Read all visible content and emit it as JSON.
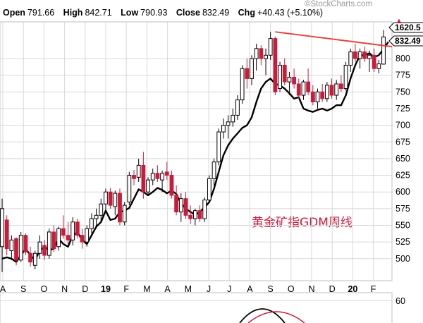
{
  "header": {
    "open_label": "Open",
    "open_value": "791.66",
    "high_label": "High",
    "high_value": "842.71",
    "low_label": "Low",
    "low_value": "790.93",
    "close_label": "Close",
    "close_value": "832.49",
    "chg_label": "Chg",
    "chg_value": "+40.43 (+5.10%)",
    "chg_arrow": "▲"
  },
  "watermark": "©StockCharts.com",
  "annotation": "黄金矿指GDM周线",
  "price_tags": {
    "upper": "1620.5",
    "current": "832.49"
  },
  "colors": {
    "up": "#000000",
    "down": "#cc1a3a",
    "line": "#000000",
    "trendline": "#e8413a",
    "grid": "#d8d8d8",
    "accent": "#cc1a3a"
  },
  "chart_data": {
    "type": "candlestick",
    "interval": "weekly",
    "y_ticks": [
      500,
      525,
      550,
      575,
      600,
      625,
      650,
      675,
      700,
      725,
      750,
      775,
      800
    ],
    "y_range": [
      467,
      855
    ],
    "x_tick_labels": [
      "A",
      "S",
      "O",
      "N",
      "D",
      "19",
      "F",
      "M",
      "A",
      "M",
      "J",
      "J",
      "A",
      "S",
      "O",
      "N",
      "D",
      "20",
      "F"
    ],
    "candles": [
      {
        "o": 518,
        "h": 590,
        "l": 480,
        "c": 575
      },
      {
        "o": 558,
        "h": 565,
        "l": 505,
        "c": 515
      },
      {
        "o": 512,
        "h": 535,
        "l": 498,
        "c": 528
      },
      {
        "o": 530,
        "h": 532,
        "l": 490,
        "c": 498
      },
      {
        "o": 498,
        "h": 540,
        "l": 495,
        "c": 535
      },
      {
        "o": 535,
        "h": 538,
        "l": 505,
        "c": 510
      },
      {
        "o": 508,
        "h": 518,
        "l": 488,
        "c": 495
      },
      {
        "o": 490,
        "h": 512,
        "l": 484,
        "c": 508
      },
      {
        "o": 508,
        "h": 535,
        "l": 500,
        "c": 525
      },
      {
        "o": 520,
        "h": 528,
        "l": 498,
        "c": 505
      },
      {
        "o": 505,
        "h": 545,
        "l": 500,
        "c": 540
      },
      {
        "o": 540,
        "h": 550,
        "l": 510,
        "c": 515
      },
      {
        "o": 518,
        "h": 548,
        "l": 512,
        "c": 545
      },
      {
        "o": 545,
        "h": 565,
        "l": 530,
        "c": 535
      },
      {
        "o": 535,
        "h": 555,
        "l": 522,
        "c": 528
      },
      {
        "o": 528,
        "h": 562,
        "l": 520,
        "c": 555
      },
      {
        "o": 555,
        "h": 560,
        "l": 530,
        "c": 535
      },
      {
        "o": 535,
        "h": 545,
        "l": 515,
        "c": 525
      },
      {
        "o": 525,
        "h": 550,
        "l": 518,
        "c": 545
      },
      {
        "o": 545,
        "h": 568,
        "l": 538,
        "c": 560
      },
      {
        "o": 560,
        "h": 575,
        "l": 545,
        "c": 565
      },
      {
        "o": 565,
        "h": 590,
        "l": 555,
        "c": 582
      },
      {
        "o": 582,
        "h": 605,
        "l": 570,
        "c": 600
      },
      {
        "o": 600,
        "h": 606,
        "l": 575,
        "c": 580
      },
      {
        "o": 578,
        "h": 602,
        "l": 565,
        "c": 598
      },
      {
        "o": 598,
        "h": 605,
        "l": 550,
        "c": 555
      },
      {
        "o": 555,
        "h": 585,
        "l": 550,
        "c": 580
      },
      {
        "o": 585,
        "h": 630,
        "l": 580,
        "c": 625
      },
      {
        "o": 625,
        "h": 633,
        "l": 610,
        "c": 620
      },
      {
        "o": 622,
        "h": 650,
        "l": 615,
        "c": 640
      },
      {
        "o": 640,
        "h": 660,
        "l": 590,
        "c": 600
      },
      {
        "o": 600,
        "h": 622,
        "l": 595,
        "c": 618
      },
      {
        "o": 618,
        "h": 635,
        "l": 610,
        "c": 628
      },
      {
        "o": 628,
        "h": 640,
        "l": 615,
        "c": 620
      },
      {
        "o": 618,
        "h": 632,
        "l": 600,
        "c": 628
      },
      {
        "o": 630,
        "h": 645,
        "l": 618,
        "c": 625
      },
      {
        "o": 625,
        "h": 632,
        "l": 590,
        "c": 595
      },
      {
        "o": 595,
        "h": 610,
        "l": 565,
        "c": 570
      },
      {
        "o": 570,
        "h": 598,
        "l": 555,
        "c": 590
      },
      {
        "o": 590,
        "h": 600,
        "l": 560,
        "c": 565
      },
      {
        "o": 565,
        "h": 580,
        "l": 552,
        "c": 560
      },
      {
        "o": 560,
        "h": 575,
        "l": 550,
        "c": 572
      },
      {
        "o": 572,
        "h": 580,
        "l": 555,
        "c": 560
      },
      {
        "o": 560,
        "h": 592,
        "l": 555,
        "c": 588
      },
      {
        "o": 588,
        "h": 625,
        "l": 585,
        "c": 620
      },
      {
        "o": 620,
        "h": 650,
        "l": 610,
        "c": 645
      },
      {
        "o": 645,
        "h": 695,
        "l": 640,
        "c": 690
      },
      {
        "o": 690,
        "h": 710,
        "l": 680,
        "c": 700
      },
      {
        "o": 700,
        "h": 715,
        "l": 680,
        "c": 705
      },
      {
        "o": 705,
        "h": 725,
        "l": 698,
        "c": 715
      },
      {
        "o": 715,
        "h": 745,
        "l": 708,
        "c": 738
      },
      {
        "o": 738,
        "h": 790,
        "l": 732,
        "c": 785
      },
      {
        "o": 785,
        "h": 800,
        "l": 755,
        "c": 770
      },
      {
        "o": 770,
        "h": 805,
        "l": 760,
        "c": 800
      },
      {
        "o": 800,
        "h": 822,
        "l": 782,
        "c": 815
      },
      {
        "o": 815,
        "h": 820,
        "l": 790,
        "c": 800
      },
      {
        "o": 800,
        "h": 815,
        "l": 775,
        "c": 805
      },
      {
        "o": 805,
        "h": 840,
        "l": 798,
        "c": 830
      },
      {
        "o": 830,
        "h": 833,
        "l": 745,
        "c": 750
      },
      {
        "o": 755,
        "h": 795,
        "l": 750,
        "c": 790
      },
      {
        "o": 790,
        "h": 800,
        "l": 760,
        "c": 765
      },
      {
        "o": 765,
        "h": 780,
        "l": 745,
        "c": 772
      },
      {
        "o": 772,
        "h": 785,
        "l": 755,
        "c": 762
      },
      {
        "o": 762,
        "h": 770,
        "l": 740,
        "c": 745
      },
      {
        "o": 745,
        "h": 768,
        "l": 738,
        "c": 765
      },
      {
        "o": 765,
        "h": 785,
        "l": 745,
        "c": 750
      },
      {
        "o": 750,
        "h": 760,
        "l": 730,
        "c": 735
      },
      {
        "o": 735,
        "h": 755,
        "l": 725,
        "c": 750
      },
      {
        "o": 750,
        "h": 762,
        "l": 735,
        "c": 740
      },
      {
        "o": 740,
        "h": 765,
        "l": 735,
        "c": 760
      },
      {
        "o": 760,
        "h": 770,
        "l": 740,
        "c": 745
      },
      {
        "o": 745,
        "h": 768,
        "l": 738,
        "c": 762
      },
      {
        "o": 762,
        "h": 775,
        "l": 750,
        "c": 755
      },
      {
        "o": 755,
        "h": 795,
        "l": 752,
        "c": 790
      },
      {
        "o": 790,
        "h": 815,
        "l": 780,
        "c": 810
      },
      {
        "o": 810,
        "h": 822,
        "l": 795,
        "c": 800
      },
      {
        "o": 800,
        "h": 815,
        "l": 785,
        "c": 810
      },
      {
        "o": 810,
        "h": 818,
        "l": 795,
        "c": 800
      },
      {
        "o": 800,
        "h": 812,
        "l": 780,
        "c": 805
      },
      {
        "o": 805,
        "h": 815,
        "l": 780,
        "c": 785
      },
      {
        "o": 785,
        "h": 798,
        "l": 778,
        "c": 792
      },
      {
        "o": 791.66,
        "h": 842.71,
        "l": 790.93,
        "c": 832.49
      }
    ],
    "line_series": [
      {
        "name": "",
        "values": [
          500,
          502,
          500,
          495,
          505,
          515,
          505,
          498,
          512,
          518,
          513,
          515,
          530,
          522,
          518,
          535,
          540,
          528,
          522,
          535,
          548,
          555,
          572,
          558,
          560,
          570,
          572,
          576,
          590,
          604,
          600,
          595,
          600,
          606,
          603,
          598,
          602,
          597,
          583,
          575,
          570,
          566,
          570,
          577,
          585,
          605,
          630,
          655,
          670,
          680,
          688,
          696,
          700,
          712,
          735,
          755,
          765,
          770,
          762,
          760,
          755,
          748,
          740,
          742,
          725,
          722,
          720,
          723,
          725,
          722,
          725,
          730,
          730,
          745,
          770,
          790,
          805,
          805,
          808,
          802,
          805,
          814,
          825
        ]
      }
    ],
    "trendline": {
      "from": {
        "i": 58,
        "v": 840
      },
      "to": {
        "i": 83,
        "v": 820
      }
    },
    "lower_panel_tick": "60"
  }
}
